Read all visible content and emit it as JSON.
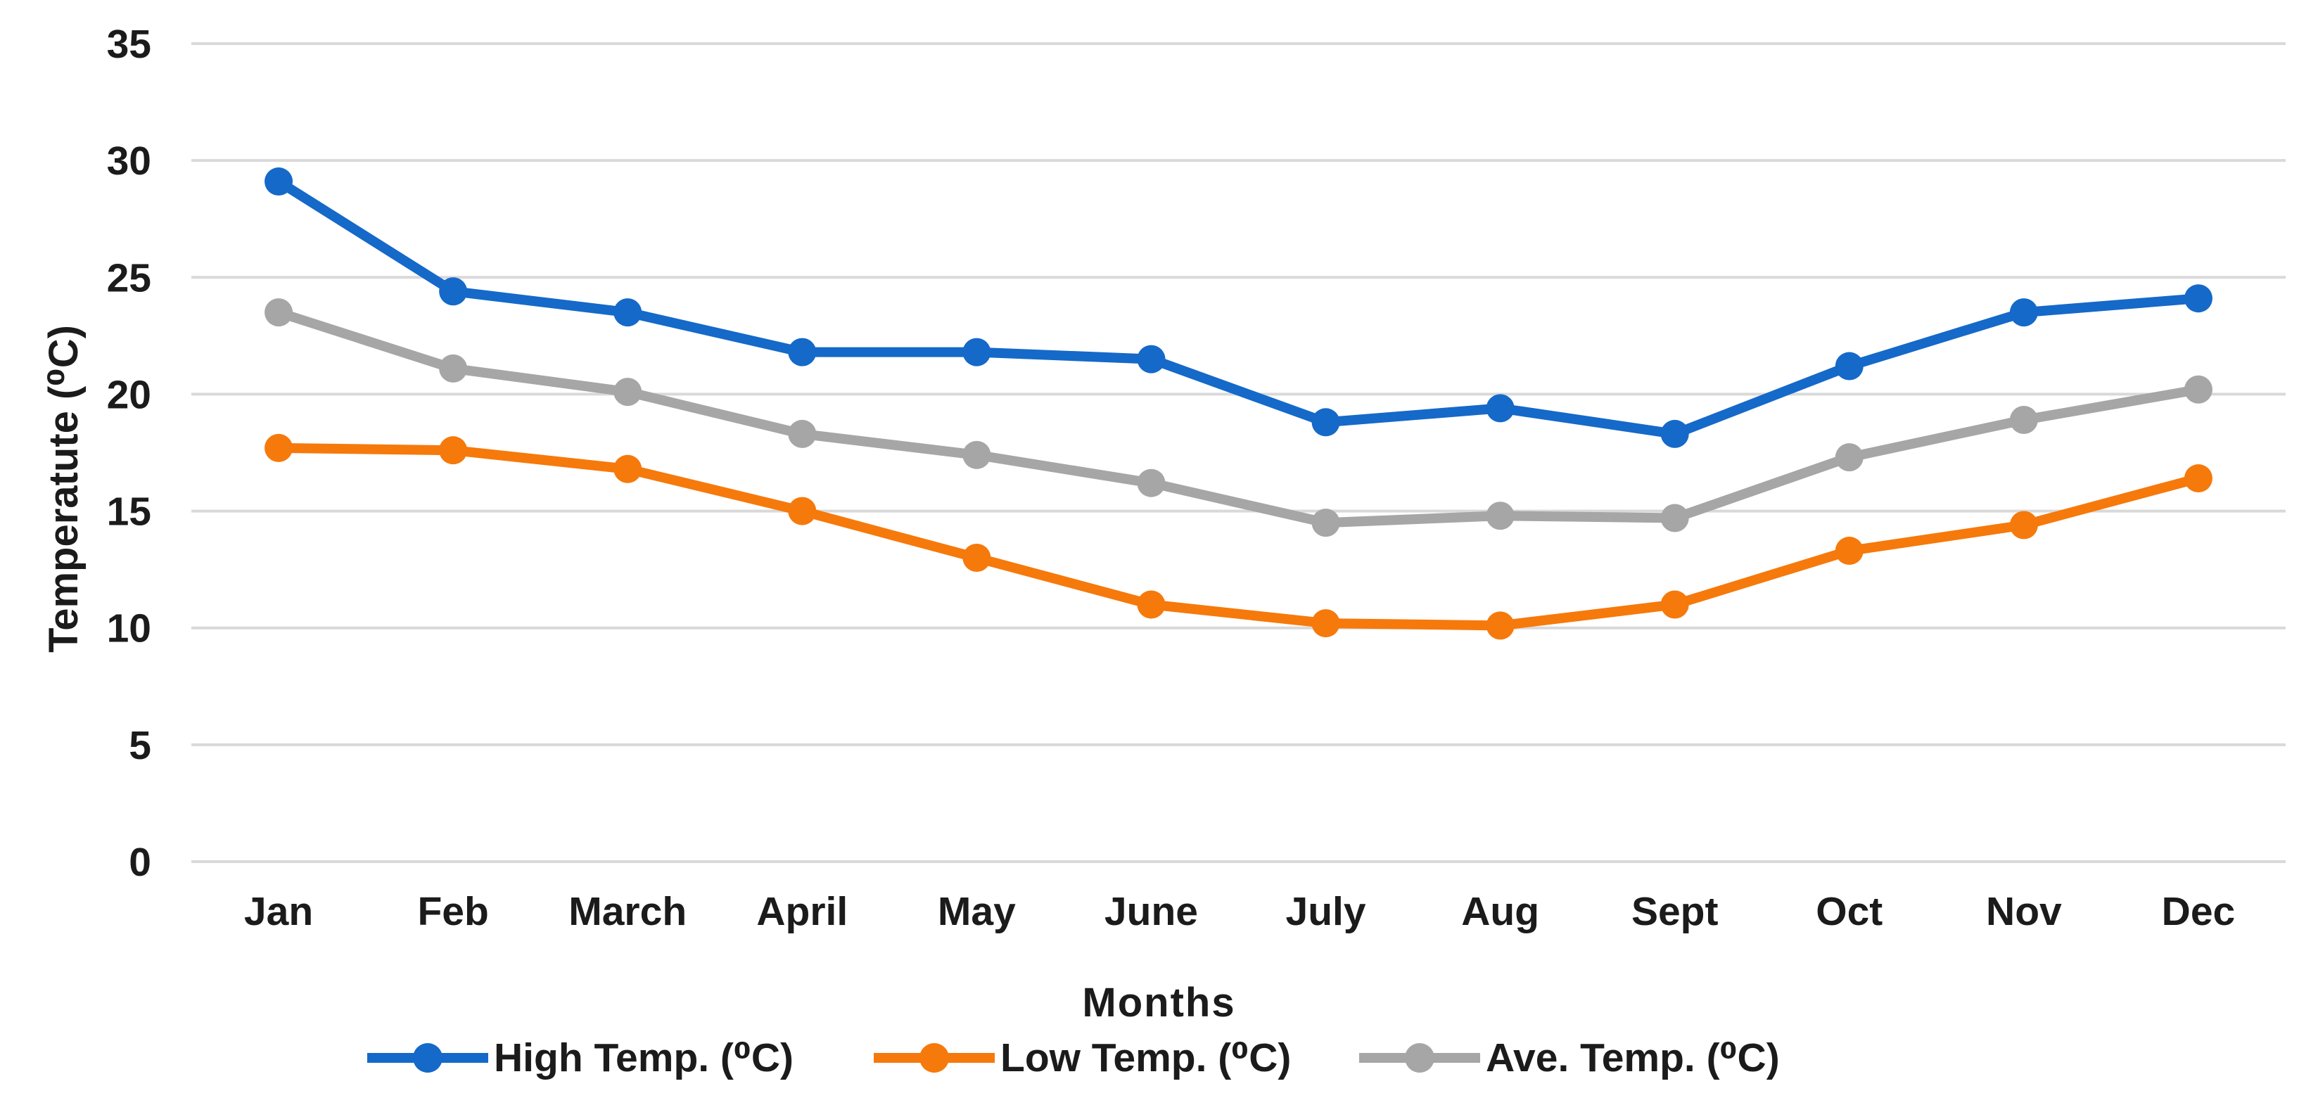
{
  "chart_data": {
    "type": "line",
    "title": "",
    "xlabel": "Months",
    "ylabel": "Temperatute (⁰C)",
    "ylim": [
      0,
      35
    ],
    "y_ticks": [
      "35",
      "30",
      "25",
      "20",
      "15",
      "10",
      "5",
      "0"
    ],
    "y_tick_values": [
      35,
      30,
      25,
      20,
      15,
      10,
      5,
      0
    ],
    "grid": "horizontal",
    "legend_position": "bottom",
    "categories": [
      "Jan",
      "Feb",
      "March",
      "April",
      "May",
      "June",
      "July",
      "Aug",
      "Sept",
      "Oct",
      "Nov",
      "Dec"
    ],
    "series": [
      {
        "name": "High Temp. (⁰C)",
        "color": "#1569C8",
        "values": [
          29.1,
          24.4,
          23.5,
          21.8,
          21.8,
          21.5,
          18.8,
          19.4,
          18.3,
          21.2,
          23.5,
          24.1
        ]
      },
      {
        "name": "Low Temp. (⁰C)",
        "color": "#F6790B",
        "values": [
          17.7,
          17.6,
          16.8,
          15.0,
          13.0,
          11.0,
          10.2,
          10.1,
          11.0,
          13.3,
          14.4,
          16.4
        ]
      },
      {
        "name": "Ave. Temp. (⁰C)",
        "color": "#A6A6A6",
        "values": [
          23.5,
          21.1,
          20.1,
          18.3,
          17.4,
          16.2,
          14.5,
          14.8,
          14.7,
          17.3,
          18.9,
          20.2
        ]
      }
    ],
    "colors": {
      "gridline": "#D9D9D9",
      "text": "#1b1b1b"
    }
  }
}
